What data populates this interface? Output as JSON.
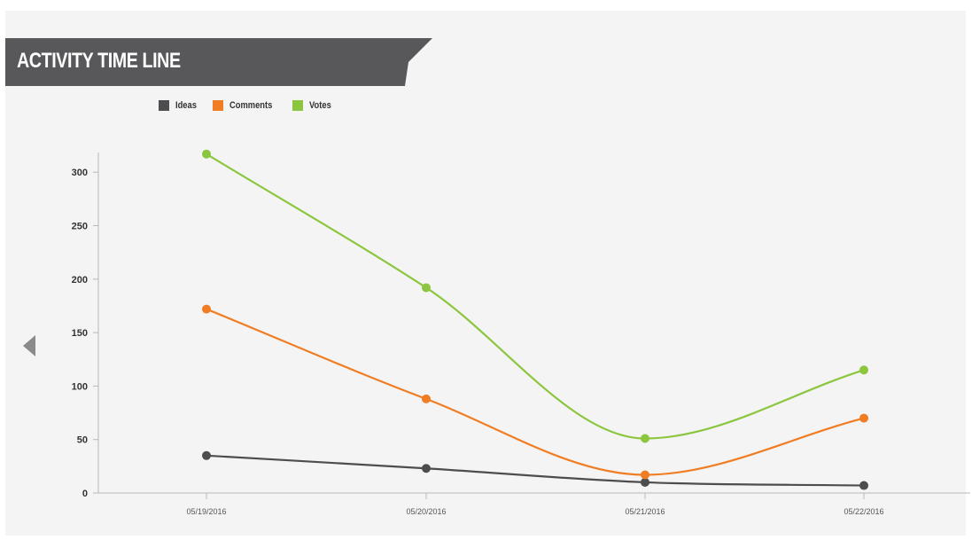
{
  "header": {
    "title": "ACTIVITY TIME LINE"
  },
  "colors": {
    "panel_bg": "#f4f4f4",
    "banner": "#58585a",
    "axis": "#b9b9b9",
    "arrow": "#8a8a8a"
  },
  "navigation": {
    "prev_icon": "triangle-left-icon"
  },
  "chart_data": {
    "type": "line",
    "title": "ACTIVITY TIME LINE",
    "xlabel": "",
    "ylabel": "",
    "categories": [
      "05/19/2016",
      "05/20/2016",
      "05/21/2016",
      "05/22/2016"
    ],
    "ylim": [
      0,
      320
    ],
    "yticks": [
      0,
      50,
      100,
      150,
      200,
      250,
      300
    ],
    "grid": false,
    "legend_position": "top-left",
    "curve": "smooth",
    "series": [
      {
        "name": "Ideas",
        "color": "#4d4d4f",
        "values": [
          35,
          23,
          10,
          7
        ]
      },
      {
        "name": "Comments",
        "color": "#f07d23",
        "values": [
          172,
          88,
          17,
          70
        ]
      },
      {
        "name": "Votes",
        "color": "#8cc63f",
        "values": [
          317,
          192,
          51,
          115
        ]
      }
    ]
  }
}
